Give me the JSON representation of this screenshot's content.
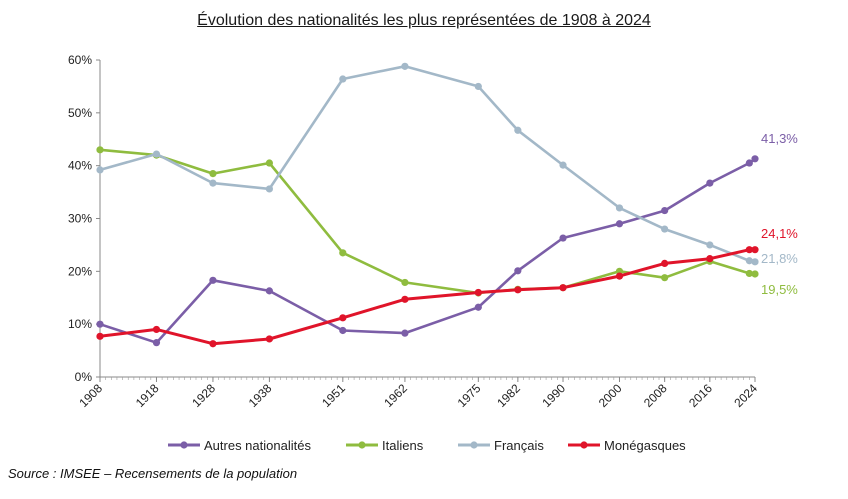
{
  "title": "Évolution des nationalités les plus représentées de 1908 à 2024",
  "source": "Source : IMSEE – Recensements de la population",
  "chart_data": {
    "type": "line",
    "title": "Évolution des nationalités les plus représentées de 1908 à 2024",
    "xlabel": "",
    "ylabel": "",
    "x": [
      1908,
      1918,
      1928,
      1938,
      1951,
      1962,
      1975,
      1982,
      1990,
      2000,
      2008,
      2016,
      2023,
      2024
    ],
    "x_tick_labels": [
      "1908",
      "1918",
      "1928",
      "1938",
      "1951",
      "1962",
      "1975",
      "1982",
      "1990",
      "2000",
      "2008",
      "2016",
      "2024"
    ],
    "y_ticks": [
      0,
      10,
      20,
      30,
      40,
      50,
      60
    ],
    "y_tick_labels": [
      "0%",
      "10%",
      "20%",
      "30%",
      "40%",
      "50%",
      "60%"
    ],
    "ylim": [
      0,
      60
    ],
    "grid": false,
    "legend_position": "bottom",
    "series": [
      {
        "name": "Autres nationalités",
        "color": "#7b5ea7",
        "values": [
          10.0,
          6.5,
          18.3,
          16.3,
          8.8,
          8.3,
          13.2,
          20.1,
          26.3,
          29.0,
          31.5,
          36.7,
          40.5,
          41.3
        ],
        "end_label": "41,3%"
      },
      {
        "name": "Italiens",
        "color": "#8fbc3f",
        "values": [
          43.0,
          42.0,
          38.5,
          40.5,
          23.5,
          17.9,
          15.9,
          16.6,
          16.9,
          20.0,
          18.8,
          21.9,
          19.6,
          19.5
        ],
        "end_label": "19,5%"
      },
      {
        "name": "Français",
        "color": "#a3b8c8",
        "values": [
          39.2,
          42.2,
          36.7,
          35.6,
          56.4,
          58.8,
          55.0,
          46.7,
          40.1,
          32.0,
          28.0,
          25.0,
          22.0,
          21.8
        ],
        "end_label": "21,8%"
      },
      {
        "name": "Monégasques",
        "color": "#e0142a",
        "values": [
          7.7,
          9.0,
          6.3,
          7.2,
          11.2,
          14.7,
          16.0,
          16.5,
          16.9,
          19.1,
          21.5,
          22.4,
          24.1,
          24.1
        ],
        "end_label": "24,1%"
      }
    ]
  }
}
